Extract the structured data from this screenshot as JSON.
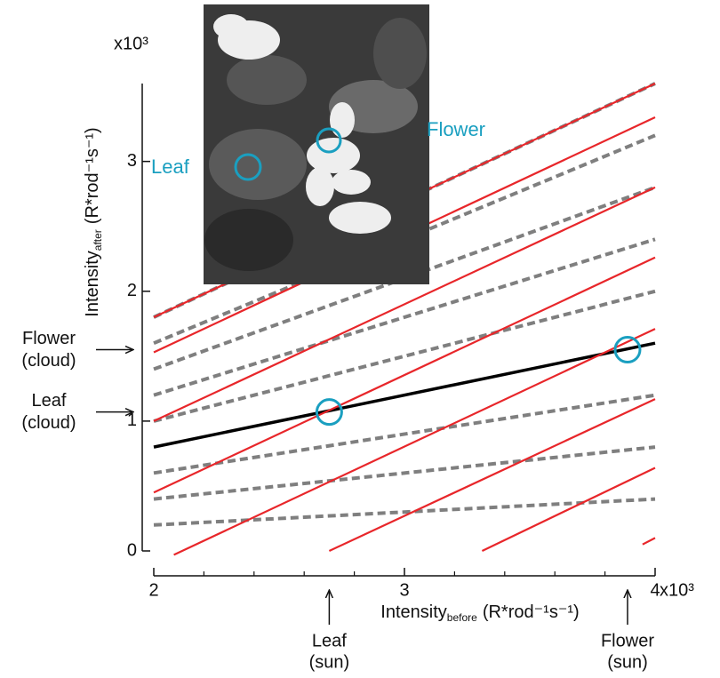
{
  "chart_data": {
    "type": "line",
    "xlim": [
      2,
      4
    ],
    "ylim": [
      0,
      3.6
    ],
    "xticks": [
      2,
      3,
      4
    ],
    "yticks": [
      0,
      1,
      2,
      3
    ],
    "x_minor_ticks": [
      2.2,
      2.4,
      2.6,
      2.8,
      3.2,
      3.4,
      3.6,
      3.8
    ],
    "x_multiplier": "x10³",
    "y_multiplier": "x10³",
    "x_label": {
      "main": "Intensity",
      "sub": "before",
      "unit": "(R*rod⁻¹s⁻¹)"
    },
    "y_label": {
      "main": "Intensity",
      "sub": "after",
      "unit": "(R*rod⁻¹s⁻¹)"
    },
    "series": [
      {
        "color": "#000000",
        "style": "solid",
        "x": [
          2,
          4
        ],
        "values": [
          0.8,
          1.6
        ]
      },
      {
        "color": "#7f7f7f",
        "style": "dashed",
        "x": [
          2,
          4
        ],
        "values": [
          0.2,
          0.4
        ]
      },
      {
        "color": "#7f7f7f",
        "style": "dashed",
        "x": [
          2,
          4
        ],
        "values": [
          0.4,
          0.8
        ]
      },
      {
        "color": "#7f7f7f",
        "style": "dashed",
        "x": [
          2,
          4
        ],
        "values": [
          0.6,
          1.2
        ]
      },
      {
        "color": "#7f7f7f",
        "style": "dashed",
        "x": [
          2,
          4
        ],
        "values": [
          1.0,
          2.0
        ]
      },
      {
        "color": "#7f7f7f",
        "style": "dashed",
        "x": [
          2,
          4
        ],
        "values": [
          1.2,
          2.4
        ]
      },
      {
        "color": "#7f7f7f",
        "style": "dashed",
        "x": [
          2,
          4
        ],
        "values": [
          1.4,
          2.8
        ]
      },
      {
        "color": "#7f7f7f",
        "style": "dashed",
        "x": [
          2,
          4
        ],
        "values": [
          1.6,
          3.2
        ]
      },
      {
        "color": "#7f7f7f",
        "style": "dashed",
        "x": [
          2,
          4
        ],
        "values": [
          1.8,
          3.6
        ]
      },
      {
        "color": "#e8262a",
        "style": "solid",
        "x": [
          2,
          4
        ],
        "values": [
          1.8,
          3.6
        ]
      },
      {
        "color": "#e8262a",
        "style": "solid",
        "x": [
          2,
          4
        ],
        "values": [
          1.53,
          3.34
        ]
      },
      {
        "color": "#e8262a",
        "style": "solid",
        "x": [
          2,
          4
        ],
        "values": [
          1.0,
          2.8
        ]
      },
      {
        "color": "#e8262a",
        "style": "solid",
        "x": [
          2,
          4
        ],
        "values": [
          0.45,
          2.26
        ]
      },
      {
        "color": "#e8262a",
        "style": "solid",
        "x": [
          2.08,
          4
        ],
        "values": [
          -0.03,
          1.71
        ]
      },
      {
        "color": "#e8262a",
        "style": "solid",
        "x": [
          2.7,
          4
        ],
        "values": [
          0,
          1.17
        ]
      },
      {
        "color": "#e8262a",
        "style": "solid",
        "x": [
          3.31,
          4
        ],
        "values": [
          0,
          0.64
        ]
      },
      {
        "color": "#e8262a",
        "style": "solid",
        "x": [
          3.95,
          4
        ],
        "values": [
          0.05,
          0.1
        ]
      }
    ],
    "markers": {
      "color": "#1a9fc0",
      "x": [
        2.7,
        3.89
      ],
      "values": [
        1.07,
        1.55
      ]
    },
    "annotations": [
      {
        "side": "left",
        "marker": 1,
        "lines": [
          "Flower",
          "(cloud)"
        ]
      },
      {
        "side": "left",
        "marker": 0,
        "lines": [
          "Leaf",
          "(cloud)"
        ]
      },
      {
        "side": "bottom",
        "marker": 0,
        "lines": [
          "Leaf",
          "(sun)"
        ]
      },
      {
        "side": "bottom",
        "marker": 1,
        "lines": [
          "Flower",
          "(sun)"
        ]
      }
    ],
    "inset": {
      "labels": [
        "Leaf",
        "Flower"
      ]
    }
  }
}
